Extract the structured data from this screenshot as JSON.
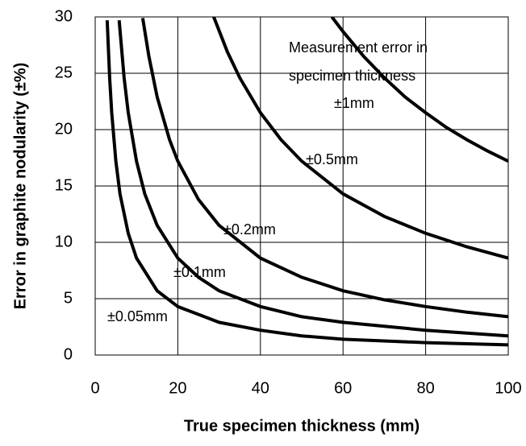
{
  "chart_data": {
    "type": "line",
    "xlabel": "True specimen thickness (mm)",
    "ylabel": "Error in graphite nodularity (±%)",
    "annotations": [
      "Measurement error in",
      "specimen thickness"
    ],
    "xlim": [
      0,
      100
    ],
    "xticks": [
      0,
      20,
      40,
      60,
      80,
      100
    ],
    "ylim": [
      0,
      30
    ],
    "yticks": [
      0,
      5,
      10,
      15,
      20,
      25,
      30
    ],
    "grid": true,
    "series": [
      {
        "name": "±0.05mm",
        "color": "#000000",
        "x": [
          2.9,
          3.5,
          4,
          5,
          6,
          8,
          10,
          15,
          20,
          30,
          40,
          50,
          60,
          80,
          100
        ],
        "values": [
          29.7,
          24.6,
          21.5,
          17.2,
          14.3,
          10.8,
          8.6,
          5.7,
          4.3,
          2.9,
          2.2,
          1.7,
          1.4,
          1.1,
          0.9
        ]
      },
      {
        "name": "±0.1mm",
        "color": "#000000",
        "x": [
          5.8,
          7,
          8,
          10,
          12,
          15,
          20,
          25,
          30,
          40,
          50,
          60,
          80,
          100
        ],
        "values": [
          29.7,
          24.6,
          21.5,
          17.2,
          14.3,
          11.5,
          8.6,
          6.9,
          5.7,
          4.3,
          3.4,
          2.9,
          2.2,
          1.7
        ]
      },
      {
        "name": "±0.2mm",
        "color": "#000000",
        "x": [
          11.5,
          13,
          15,
          18,
          20,
          25,
          30,
          40,
          50,
          60,
          70,
          80,
          90,
          100
        ],
        "values": [
          29.9,
          26.5,
          22.9,
          19.1,
          17.2,
          13.8,
          11.5,
          8.6,
          6.9,
          5.7,
          4.9,
          4.3,
          3.8,
          3.4
        ]
      },
      {
        "name": "±0.5mm",
        "color": "#000000",
        "x": [
          28.7,
          32,
          35,
          40,
          45,
          50,
          60,
          70,
          80,
          90,
          100
        ],
        "values": [
          30.0,
          26.9,
          24.6,
          21.5,
          19.1,
          17.2,
          14.3,
          12.3,
          10.8,
          9.6,
          8.6
        ]
      },
      {
        "name": "±1mm",
        "color": "#000000",
        "x": [
          57.3,
          60,
          65,
          70,
          75,
          80,
          85,
          90,
          95,
          100
        ],
        "values": [
          30.0,
          28.7,
          26.5,
          24.6,
          22.9,
          21.5,
          20.2,
          19.1,
          18.1,
          17.2
        ]
      }
    ]
  }
}
